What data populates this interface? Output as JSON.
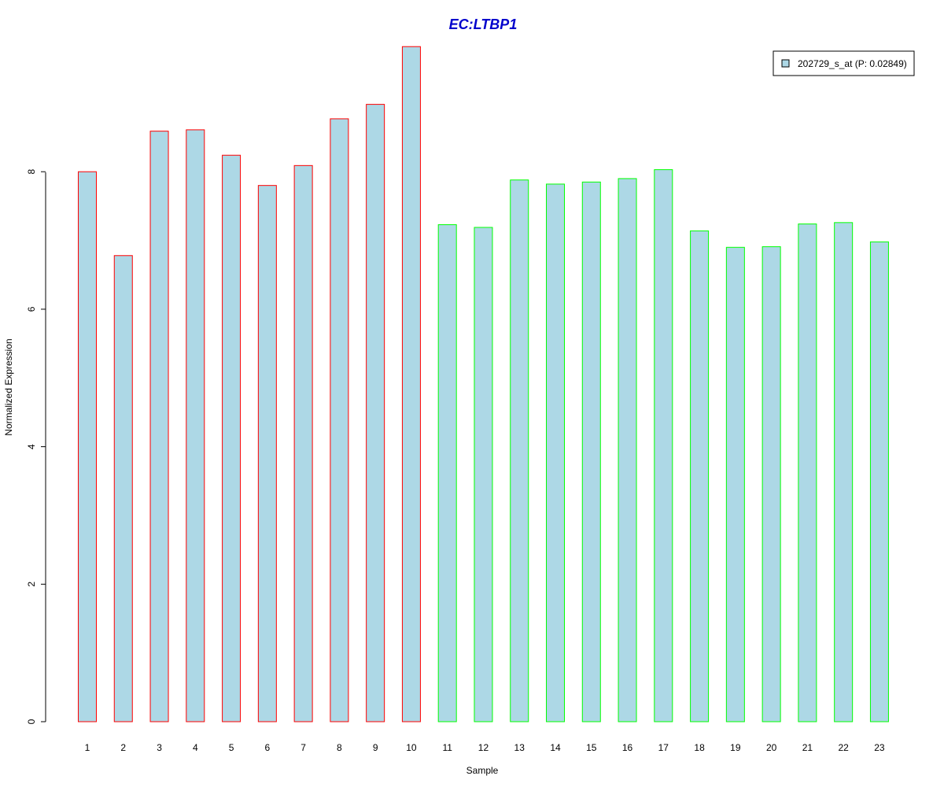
{
  "chart_data": {
    "type": "bar",
    "title": "EC:LTBP1",
    "xlabel": "Sample",
    "ylabel": "Normalized Expression",
    "categories": [
      "1",
      "2",
      "3",
      "4",
      "5",
      "6",
      "7",
      "8",
      "9",
      "10",
      "11",
      "12",
      "13",
      "14",
      "15",
      "16",
      "17",
      "18",
      "19",
      "20",
      "21",
      "22",
      "23"
    ],
    "values": [
      8.0,
      6.78,
      8.59,
      8.61,
      8.24,
      7.8,
      8.09,
      8.77,
      8.98,
      9.82,
      7.23,
      7.19,
      7.88,
      7.82,
      7.85,
      7.9,
      8.03,
      7.14,
      6.9,
      6.91,
      7.24,
      7.26,
      6.98
    ],
    "group_outline": [
      "red",
      "red",
      "red",
      "red",
      "red",
      "red",
      "red",
      "red",
      "red",
      "red",
      "green",
      "green",
      "green",
      "green",
      "green",
      "green",
      "green",
      "green",
      "green",
      "green",
      "green",
      "green",
      "green"
    ],
    "ylim": [
      0,
      9.82
    ],
    "yticks": [
      0,
      2,
      4,
      6,
      8
    ],
    "grid": false,
    "legend": {
      "position": "top-right",
      "entries": [
        {
          "label": "202729_s_at (P: 0.02849)",
          "fill": "#add8e6"
        }
      ]
    },
    "colors": {
      "bar_fill": "#add8e6",
      "outline_red": "#ff0000",
      "outline_green": "#00ff00",
      "title": "#0000cc"
    }
  }
}
